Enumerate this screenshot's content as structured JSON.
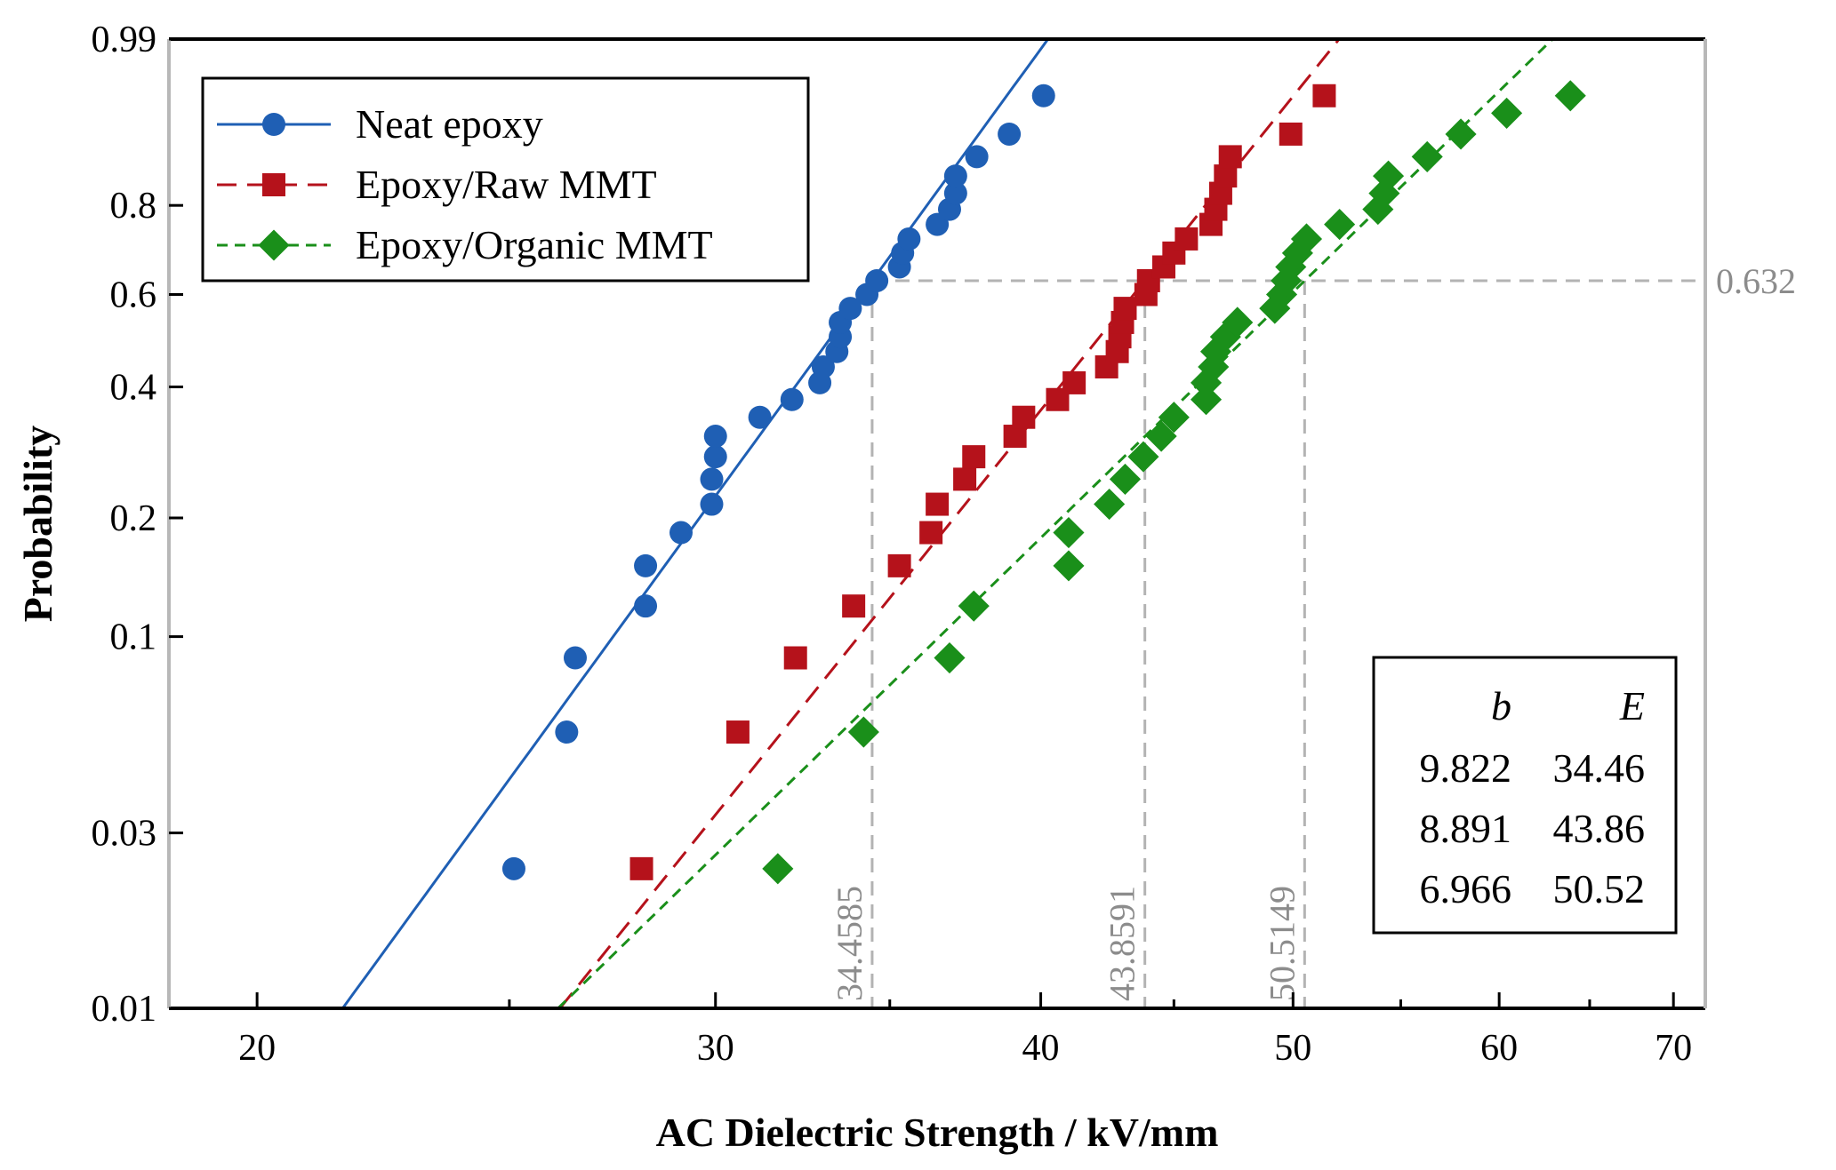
{
  "chart_data": {
    "type": "scatter",
    "subtype": "weibull-probability-plot",
    "xlabel": "AC Dielectric Strength / kV/mm",
    "ylabel": "Probability",
    "x_scale": "log",
    "y_scale": "weibull",
    "xlim": [
      18.5,
      72
    ],
    "ylim": [
      0.01,
      0.99
    ],
    "x_ticks": [
      {
        "value": 20,
        "label": "20"
      },
      {
        "value": 30,
        "label": "30"
      },
      {
        "value": 40,
        "label": "40"
      },
      {
        "value": 50,
        "label": "50"
      },
      {
        "value": 60,
        "label": "60"
      },
      {
        "value": 70,
        "label": "70"
      }
    ],
    "x_minor_ticks": [
      25,
      35,
      45,
      55,
      65
    ],
    "y_ticks": [
      {
        "value": 0.99,
        "label": "0.99"
      },
      {
        "value": 0.8,
        "label": "0.8"
      },
      {
        "value": 0.6,
        "label": "0.6"
      },
      {
        "value": 0.4,
        "label": "0.4"
      },
      {
        "value": 0.2,
        "label": "0.2"
      },
      {
        "value": 0.1,
        "label": "0.1"
      },
      {
        "value": 0.03,
        "label": "0.03"
      },
      {
        "value": 0.01,
        "label": "0.01"
      }
    ],
    "grid": false,
    "legend_position": "top-left",
    "series": [
      {
        "name": "Neat epoxy",
        "marker": "circle",
        "line_style": "solid",
        "color": "#1f5fb4",
        "fit": {
          "b": 9.822,
          "E": 34.46
        },
        "points": [
          {
            "x": 25.1,
            "y": 0.024
          },
          {
            "x": 26.3,
            "y": 0.056
          },
          {
            "x": 26.5,
            "y": 0.088
          },
          {
            "x": 28.2,
            "y": 0.12
          },
          {
            "x": 28.2,
            "y": 0.152
          },
          {
            "x": 29.1,
            "y": 0.184
          },
          {
            "x": 29.9,
            "y": 0.216
          },
          {
            "x": 29.9,
            "y": 0.248
          },
          {
            "x": 30.0,
            "y": 0.28
          },
          {
            "x": 30.0,
            "y": 0.312
          },
          {
            "x": 31.2,
            "y": 0.344
          },
          {
            "x": 32.1,
            "y": 0.376
          },
          {
            "x": 32.9,
            "y": 0.408
          },
          {
            "x": 33.0,
            "y": 0.44
          },
          {
            "x": 33.4,
            "y": 0.472
          },
          {
            "x": 33.5,
            "y": 0.504
          },
          {
            "x": 33.5,
            "y": 0.536
          },
          {
            "x": 33.8,
            "y": 0.568
          },
          {
            "x": 34.3,
            "y": 0.6
          },
          {
            "x": 34.6,
            "y": 0.632
          },
          {
            "x": 35.3,
            "y": 0.664
          },
          {
            "x": 35.4,
            "y": 0.696
          },
          {
            "x": 35.6,
            "y": 0.728
          },
          {
            "x": 36.5,
            "y": 0.76
          },
          {
            "x": 36.9,
            "y": 0.792
          },
          {
            "x": 37.1,
            "y": 0.824
          },
          {
            "x": 37.1,
            "y": 0.856
          },
          {
            "x": 37.8,
            "y": 0.888
          },
          {
            "x": 38.9,
            "y": 0.92
          },
          {
            "x": 40.1,
            "y": 0.96
          }
        ]
      },
      {
        "name": "Epoxy/Raw MMT",
        "marker": "square",
        "line_style": "dashed",
        "color": "#b5121b",
        "fit": {
          "b": 8.891,
          "E": 43.86
        },
        "points": [
          {
            "x": 28.1,
            "y": 0.024
          },
          {
            "x": 30.6,
            "y": 0.056
          },
          {
            "x": 32.2,
            "y": 0.088
          },
          {
            "x": 33.9,
            "y": 0.12
          },
          {
            "x": 35.3,
            "y": 0.152
          },
          {
            "x": 36.3,
            "y": 0.184
          },
          {
            "x": 36.5,
            "y": 0.216
          },
          {
            "x": 37.4,
            "y": 0.248
          },
          {
            "x": 37.7,
            "y": 0.28
          },
          {
            "x": 39.1,
            "y": 0.312
          },
          {
            "x": 39.4,
            "y": 0.344
          },
          {
            "x": 40.6,
            "y": 0.376
          },
          {
            "x": 41.2,
            "y": 0.408
          },
          {
            "x": 42.4,
            "y": 0.44
          },
          {
            "x": 42.8,
            "y": 0.472
          },
          {
            "x": 42.9,
            "y": 0.504
          },
          {
            "x": 43.0,
            "y": 0.536
          },
          {
            "x": 43.1,
            "y": 0.568
          },
          {
            "x": 43.9,
            "y": 0.6
          },
          {
            "x": 44.0,
            "y": 0.632
          },
          {
            "x": 44.6,
            "y": 0.664
          },
          {
            "x": 45.0,
            "y": 0.696
          },
          {
            "x": 45.5,
            "y": 0.728
          },
          {
            "x": 46.5,
            "y": 0.76
          },
          {
            "x": 46.7,
            "y": 0.792
          },
          {
            "x": 46.9,
            "y": 0.824
          },
          {
            "x": 47.1,
            "y": 0.856
          },
          {
            "x": 47.3,
            "y": 0.888
          },
          {
            "x": 49.9,
            "y": 0.92
          },
          {
            "x": 51.4,
            "y": 0.96
          }
        ]
      },
      {
        "name": "Epoxy/Organic MMT",
        "marker": "diamond",
        "line_style": "dashed",
        "color": "#1a8f1a",
        "fit": {
          "b": 6.966,
          "E": 50.52
        },
        "points": [
          {
            "x": 31.7,
            "y": 0.024
          },
          {
            "x": 34.2,
            "y": 0.056
          },
          {
            "x": 36.9,
            "y": 0.088
          },
          {
            "x": 37.7,
            "y": 0.12
          },
          {
            "x": 41.0,
            "y": 0.152
          },
          {
            "x": 41.0,
            "y": 0.184
          },
          {
            "x": 42.5,
            "y": 0.216
          },
          {
            "x": 43.1,
            "y": 0.248
          },
          {
            "x": 43.8,
            "y": 0.28
          },
          {
            "x": 44.5,
            "y": 0.312
          },
          {
            "x": 45.0,
            "y": 0.344
          },
          {
            "x": 46.3,
            "y": 0.376
          },
          {
            "x": 46.3,
            "y": 0.408
          },
          {
            "x": 46.6,
            "y": 0.44
          },
          {
            "x": 46.7,
            "y": 0.472
          },
          {
            "x": 47.1,
            "y": 0.504
          },
          {
            "x": 47.6,
            "y": 0.536
          },
          {
            "x": 49.2,
            "y": 0.568
          },
          {
            "x": 49.5,
            "y": 0.6
          },
          {
            "x": 49.7,
            "y": 0.632
          },
          {
            "x": 49.9,
            "y": 0.664
          },
          {
            "x": 50.2,
            "y": 0.696
          },
          {
            "x": 50.6,
            "y": 0.728
          },
          {
            "x": 52.1,
            "y": 0.76
          },
          {
            "x": 53.9,
            "y": 0.792
          },
          {
            "x": 54.2,
            "y": 0.824
          },
          {
            "x": 54.4,
            "y": 0.856
          },
          {
            "x": 56.3,
            "y": 0.888
          },
          {
            "x": 58.0,
            "y": 0.92
          },
          {
            "x": 60.4,
            "y": 0.944
          },
          {
            "x": 63.9,
            "y": 0.96
          }
        ]
      }
    ],
    "reference_lines": {
      "color": "#b3b3b3",
      "horizontal": {
        "y": 0.632,
        "label": "0.632"
      },
      "vertical": [
        {
          "x": 34.4585,
          "label": "34.4585"
        },
        {
          "x": 43.8591,
          "label": "43.8591"
        },
        {
          "x": 50.5149,
          "label": "50.5149"
        }
      ]
    },
    "param_table": {
      "headers": [
        "b",
        "E"
      ],
      "rows": [
        [
          "9.822",
          "34.46"
        ],
        [
          "8.891",
          "43.86"
        ],
        [
          "6.966",
          "50.52"
        ]
      ]
    }
  }
}
